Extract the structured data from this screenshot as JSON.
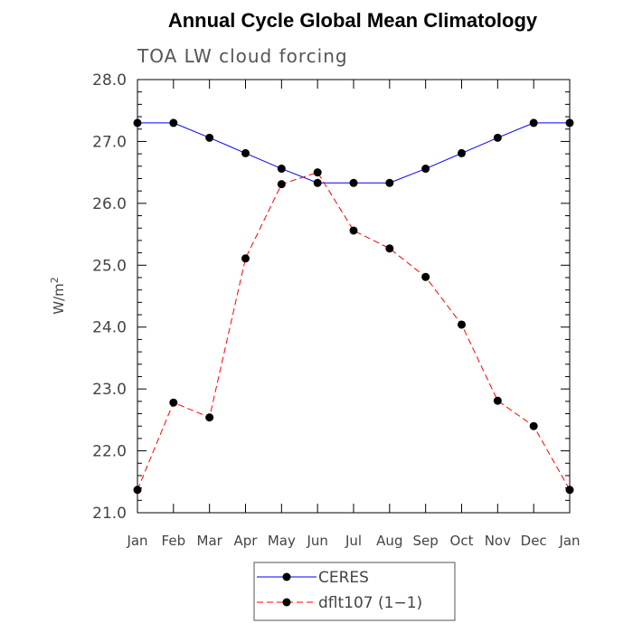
{
  "chart_data": {
    "type": "line",
    "title": "Annual Cycle Global Mean Climatology",
    "subtitle": "TOA LW cloud forcing",
    "xlabel": "",
    "ylabel": "W/m",
    "ylabel_superscript": "2",
    "categories": [
      "Jan",
      "Feb",
      "Mar",
      "Apr",
      "May",
      "Jun",
      "Jul",
      "Aug",
      "Sep",
      "Oct",
      "Nov",
      "Dec",
      "Jan"
    ],
    "ylim": [
      21.0,
      28.0
    ],
    "yticks": [
      "21.0",
      "22.0",
      "23.0",
      "24.0",
      "25.0",
      "26.0",
      "27.0",
      "28.0"
    ],
    "legend_position": "bottom-center",
    "series": [
      {
        "name": "CERES",
        "color": "#0000ff",
        "dash": "solid",
        "marker_color": "#000000",
        "values": [
          27.3,
          27.3,
          27.06,
          26.81,
          26.56,
          26.33,
          26.33,
          26.33,
          26.56,
          26.81,
          27.06,
          27.3,
          27.3
        ]
      },
      {
        "name": "dflt107 (1−1)",
        "color": "#ff0000",
        "dash": "dashed",
        "marker_color": "#000000",
        "values": [
          21.37,
          22.78,
          22.54,
          25.11,
          26.31,
          26.5,
          25.56,
          25.27,
          24.81,
          24.04,
          22.81,
          22.4,
          21.37
        ]
      }
    ]
  }
}
